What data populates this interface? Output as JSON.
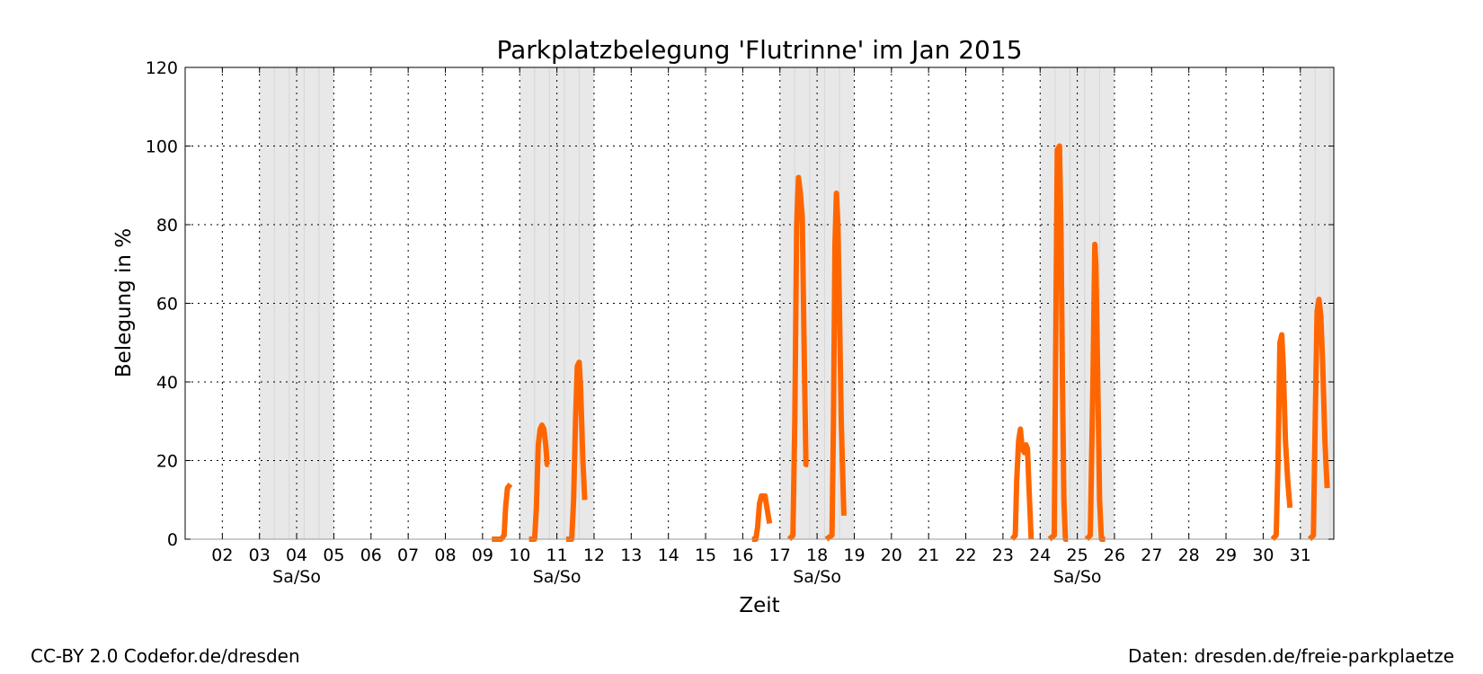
{
  "chart_data": {
    "type": "line",
    "title": "Parkplatzbelegung 'Flutrinne' im Jan 2015",
    "xlabel": "Zeit",
    "ylabel": "Belegung in %",
    "ylim": [
      0,
      120
    ],
    "yticks": [
      0,
      20,
      40,
      60,
      80,
      100,
      120
    ],
    "xlim": [
      1.0,
      31.9
    ],
    "xticks": [
      {
        "day": 2,
        "label": "02"
      },
      {
        "day": 3,
        "label": "03"
      },
      {
        "day": 4,
        "label": "04"
      },
      {
        "day": 5,
        "label": "05"
      },
      {
        "day": 6,
        "label": "06"
      },
      {
        "day": 7,
        "label": "07"
      },
      {
        "day": 8,
        "label": "08"
      },
      {
        "day": 9,
        "label": "09"
      },
      {
        "day": 10,
        "label": "10"
      },
      {
        "day": 11,
        "label": "11"
      },
      {
        "day": 12,
        "label": "12"
      },
      {
        "day": 13,
        "label": "13"
      },
      {
        "day": 14,
        "label": "14"
      },
      {
        "day": 15,
        "label": "15"
      },
      {
        "day": 16,
        "label": "16"
      },
      {
        "day": 17,
        "label": "17"
      },
      {
        "day": 18,
        "label": "18"
      },
      {
        "day": 19,
        "label": "19"
      },
      {
        "day": 20,
        "label": "20"
      },
      {
        "day": 21,
        "label": "21"
      },
      {
        "day": 22,
        "label": "22"
      },
      {
        "day": 23,
        "label": "23"
      },
      {
        "day": 24,
        "label": "24"
      },
      {
        "day": 25,
        "label": "25"
      },
      {
        "day": 26,
        "label": "26"
      },
      {
        "day": 27,
        "label": "27"
      },
      {
        "day": 28,
        "label": "28"
      },
      {
        "day": 29,
        "label": "29"
      },
      {
        "day": 30,
        "label": "30"
      },
      {
        "day": 31,
        "label": "31"
      }
    ],
    "weekends": [
      {
        "start": 3,
        "end": 5,
        "label": "Sa/So"
      },
      {
        "start": 10,
        "end": 12,
        "label": "Sa/So"
      },
      {
        "start": 17,
        "end": 19,
        "label": "Sa/So"
      },
      {
        "start": 24,
        "end": 26,
        "label": "Sa/So"
      },
      {
        "start": 31,
        "end": 31.9,
        "label": ""
      }
    ],
    "grid": true,
    "line_color": "#ff6600",
    "weekend_color": "#e8e8e8",
    "series": [
      {
        "segments": [
          [
            [
              9.25,
              0
            ],
            [
              9.5,
              0
            ],
            [
              9.58,
              1
            ],
            [
              9.62,
              8
            ],
            [
              9.67,
              13
            ],
            [
              9.75,
              14
            ]
          ],
          [
            [
              10.25,
              0
            ],
            [
              10.4,
              0
            ],
            [
              10.45,
              8
            ],
            [
              10.5,
              24
            ],
            [
              10.55,
              28
            ],
            [
              10.6,
              29
            ],
            [
              10.65,
              28
            ],
            [
              10.7,
              24
            ],
            [
              10.74,
              19
            ],
            [
              10.78,
              19
            ]
          ],
          [
            [
              11.25,
              0
            ],
            [
              11.4,
              0
            ],
            [
              11.45,
              10
            ],
            [
              11.5,
              30
            ],
            [
              11.55,
              44
            ],
            [
              11.6,
              45
            ],
            [
              11.64,
              38
            ],
            [
              11.7,
              20
            ],
            [
              11.75,
              10
            ]
          ],
          [
            [
              16.25,
              0
            ],
            [
              16.35,
              0
            ],
            [
              16.4,
              3
            ],
            [
              16.45,
              9
            ],
            [
              16.5,
              11
            ],
            [
              16.6,
              11
            ],
            [
              16.65,
              8
            ],
            [
              16.72,
              4
            ]
          ],
          [
            [
              17.25,
              0
            ],
            [
              17.35,
              1
            ],
            [
              17.4,
              30
            ],
            [
              17.45,
              80
            ],
            [
              17.5,
              92
            ],
            [
              17.55,
              88
            ],
            [
              17.6,
              82
            ],
            [
              17.65,
              50
            ],
            [
              17.7,
              19
            ],
            [
              17.76,
              19
            ]
          ],
          [
            [
              18.25,
              0
            ],
            [
              18.4,
              1
            ],
            [
              18.44,
              30
            ],
            [
              18.48,
              75
            ],
            [
              18.52,
              88
            ],
            [
              18.56,
              80
            ],
            [
              18.6,
              60
            ],
            [
              18.65,
              30
            ],
            [
              18.72,
              6
            ]
          ],
          [
            [
              23.25,
              0
            ],
            [
              23.33,
              1
            ],
            [
              23.37,
              15
            ],
            [
              23.42,
              25
            ],
            [
              23.47,
              28
            ],
            [
              23.52,
              23
            ],
            [
              23.58,
              22
            ],
            [
              23.62,
              24
            ],
            [
              23.66,
              23
            ],
            [
              23.7,
              13
            ],
            [
              23.76,
              0
            ]
          ],
          [
            [
              24.25,
              0
            ],
            [
              24.38,
              1
            ],
            [
              24.42,
              50
            ],
            [
              24.46,
              99
            ],
            [
              24.52,
              100
            ],
            [
              24.56,
              80
            ],
            [
              24.6,
              40
            ],
            [
              24.64,
              10
            ],
            [
              24.68,
              0
            ],
            [
              24.75,
              0
            ]
          ],
          [
            [
              25.25,
              0
            ],
            [
              25.35,
              1
            ],
            [
              25.42,
              40
            ],
            [
              25.47,
              75
            ],
            [
              25.5,
              70
            ],
            [
              25.55,
              40
            ],
            [
              25.6,
              10
            ],
            [
              25.65,
              0
            ],
            [
              25.75,
              0
            ]
          ],
          [
            [
              30.25,
              0
            ],
            [
              30.35,
              1
            ],
            [
              30.4,
              20
            ],
            [
              30.45,
              50
            ],
            [
              30.5,
              52
            ],
            [
              30.54,
              44
            ],
            [
              30.6,
              25
            ],
            [
              30.66,
              15
            ],
            [
              30.72,
              8
            ]
          ],
          [
            [
              31.25,
              0
            ],
            [
              31.35,
              1
            ],
            [
              31.4,
              30
            ],
            [
              31.45,
              58
            ],
            [
              31.5,
              61
            ],
            [
              31.55,
              57
            ],
            [
              31.6,
              45
            ],
            [
              31.66,
              25
            ],
            [
              31.72,
              13
            ]
          ]
        ]
      }
    ]
  },
  "footer": {
    "credit_left": "CC-BY 2.0 Codefor.de/dresden",
    "credit_right": "Daten: dresden.de/freie-parkplaetze"
  }
}
